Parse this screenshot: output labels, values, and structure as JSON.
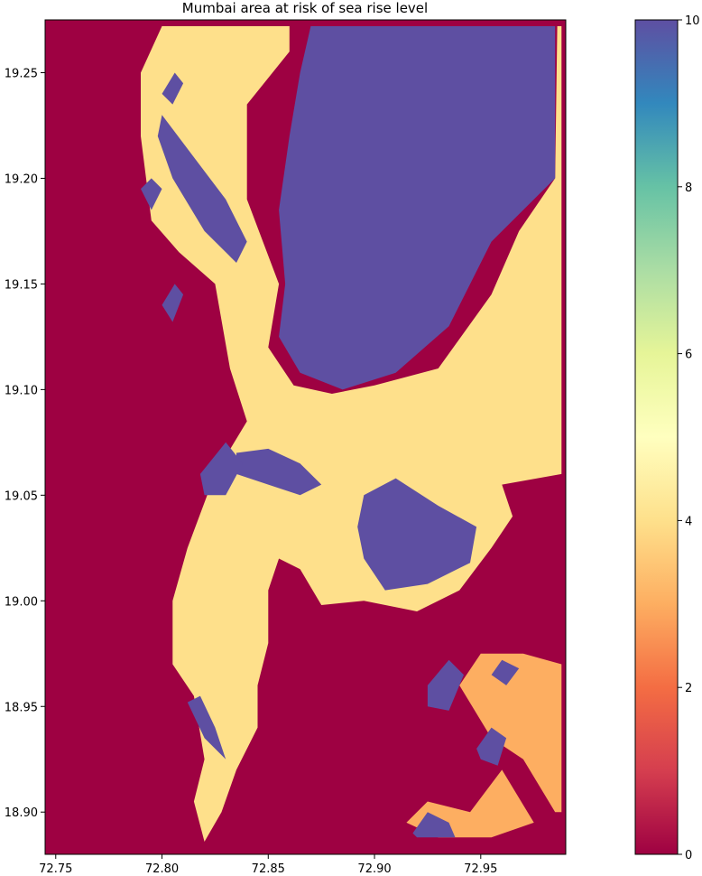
{
  "chart_data": {
    "type": "heatmap",
    "title": "Mumbai area at risk of sea rise level",
    "xlabel": "",
    "ylabel": "",
    "xlim": [
      72.745,
      72.99
    ],
    "ylim": [
      18.88,
      19.275
    ],
    "xticks": [
      72.75,
      72.8,
      72.85,
      72.9,
      72.95
    ],
    "xtick_labels": [
      "72.75",
      "72.80",
      "72.85",
      "72.90",
      "72.95"
    ],
    "yticks": [
      18.9,
      18.95,
      19.0,
      19.05,
      19.1,
      19.15,
      19.2,
      19.25
    ],
    "ytick_labels": [
      "18.90",
      "18.95",
      "19.00",
      "19.05",
      "19.10",
      "19.15",
      "19.20",
      "19.25"
    ],
    "colormap": "Spectral",
    "grid": false,
    "value_range": [
      0,
      10
    ],
    "colorbar": {
      "ticks": [
        0,
        2,
        4,
        6,
        8,
        10
      ],
      "tick_labels": [
        "0",
        "2",
        "4",
        "6",
        "8",
        "10"
      ],
      "colors": [
        "#9e0142",
        "#d53e4f",
        "#f46d43",
        "#fdae61",
        "#fee08b",
        "#ffffbf",
        "#e6f598",
        "#abdda4",
        "#66c2a5",
        "#3288bd",
        "#5e4fa2"
      ]
    },
    "regions": [
      {
        "id": "mainland-landmass",
        "value": 4,
        "polygon": [
          [
            72.82,
            18.886
          ],
          [
            72.815,
            18.905
          ],
          [
            72.82,
            18.925
          ],
          [
            72.815,
            18.955
          ],
          [
            72.805,
            18.97
          ],
          [
            72.805,
            19.0
          ],
          [
            72.812,
            19.025
          ],
          [
            72.825,
            19.06
          ],
          [
            72.84,
            19.085
          ],
          [
            72.832,
            19.11
          ],
          [
            72.825,
            19.15
          ],
          [
            72.808,
            19.165
          ],
          [
            72.795,
            19.18
          ],
          [
            72.79,
            19.22
          ],
          [
            72.79,
            19.25
          ],
          [
            72.8,
            19.272
          ],
          [
            72.86,
            19.272
          ],
          [
            72.86,
            19.26
          ],
          [
            72.84,
            19.235
          ],
          [
            72.84,
            19.19
          ],
          [
            72.855,
            19.15
          ],
          [
            72.85,
            19.12
          ],
          [
            72.862,
            19.102
          ],
          [
            72.88,
            19.098
          ],
          [
            72.9,
            19.102
          ],
          [
            72.93,
            19.11
          ],
          [
            72.955,
            19.145
          ],
          [
            72.968,
            19.175
          ],
          [
            72.985,
            19.2
          ],
          [
            72.986,
            19.272
          ],
          [
            72.988,
            19.272
          ],
          [
            72.988,
            19.06
          ],
          [
            72.96,
            19.055
          ],
          [
            72.965,
            19.04
          ],
          [
            72.955,
            19.025
          ],
          [
            72.94,
            19.005
          ],
          [
            72.92,
            18.995
          ],
          [
            72.895,
            19.0
          ],
          [
            72.875,
            18.998
          ],
          [
            72.865,
            19.015
          ],
          [
            72.855,
            19.02
          ],
          [
            72.85,
            19.005
          ],
          [
            72.85,
            18.98
          ],
          [
            72.845,
            18.96
          ],
          [
            72.845,
            18.94
          ],
          [
            72.835,
            18.92
          ],
          [
            72.828,
            18.9
          ]
        ]
      },
      {
        "id": "southeast-islands",
        "value": 3,
        "polygon": [
          [
            72.94,
            18.96
          ],
          [
            72.955,
            18.935
          ],
          [
            72.97,
            18.925
          ],
          [
            72.985,
            18.9
          ],
          [
            72.988,
            18.9
          ],
          [
            72.988,
            18.97
          ],
          [
            72.97,
            18.975
          ],
          [
            72.95,
            18.975
          ]
        ]
      },
      {
        "id": "southeast-mud",
        "value": 3,
        "polygon": [
          [
            72.915,
            18.895
          ],
          [
            72.925,
            18.905
          ],
          [
            72.945,
            18.9
          ],
          [
            72.96,
            18.92
          ],
          [
            72.975,
            18.895
          ],
          [
            72.955,
            18.888
          ],
          [
            72.93,
            18.888
          ]
        ]
      },
      {
        "id": "thane-creek-basin",
        "value": 10,
        "polygon": [
          [
            72.87,
            19.272
          ],
          [
            72.985,
            19.272
          ],
          [
            72.985,
            19.2
          ],
          [
            72.97,
            19.185
          ],
          [
            72.955,
            19.17
          ],
          [
            72.935,
            19.13
          ],
          [
            72.91,
            19.108
          ],
          [
            72.885,
            19.1
          ],
          [
            72.865,
            19.108
          ],
          [
            72.855,
            19.125
          ],
          [
            72.858,
            19.15
          ],
          [
            72.855,
            19.185
          ],
          [
            72.86,
            19.22
          ],
          [
            72.865,
            19.25
          ]
        ]
      },
      {
        "id": "mahul-bay",
        "value": 10,
        "polygon": [
          [
            72.895,
            19.05
          ],
          [
            72.91,
            19.058
          ],
          [
            72.93,
            19.045
          ],
          [
            72.948,
            19.035
          ],
          [
            72.945,
            19.018
          ],
          [
            72.925,
            19.008
          ],
          [
            72.905,
            19.005
          ],
          [
            72.895,
            19.02
          ],
          [
            72.892,
            19.035
          ]
        ]
      },
      {
        "id": "malad-creek",
        "value": 10,
        "polygon": [
          [
            72.8,
            19.23
          ],
          [
            72.815,
            19.21
          ],
          [
            72.83,
            19.19
          ],
          [
            72.84,
            19.17
          ],
          [
            72.835,
            19.16
          ],
          [
            72.82,
            19.175
          ],
          [
            72.805,
            19.2
          ],
          [
            72.798,
            19.22
          ]
        ]
      },
      {
        "id": "mahim-creek",
        "value": 10,
        "polygon": [
          [
            72.835,
            19.07
          ],
          [
            72.85,
            19.072
          ],
          [
            72.865,
            19.065
          ],
          [
            72.875,
            19.055
          ],
          [
            72.865,
            19.05
          ],
          [
            72.85,
            19.055
          ],
          [
            72.835,
            19.06
          ]
        ]
      },
      {
        "id": "colaba-point",
        "value": 10,
        "polygon": [
          [
            72.812,
            18.952
          ],
          [
            72.82,
            18.935
          ],
          [
            72.83,
            18.925
          ],
          [
            72.825,
            18.94
          ],
          [
            72.818,
            18.955
          ]
        ]
      },
      {
        "id": "west-wetland",
        "value": 10,
        "polygon": [
          [
            72.818,
            19.06
          ],
          [
            72.83,
            19.075
          ],
          [
            72.838,
            19.065
          ],
          [
            72.83,
            19.05
          ],
          [
            72.82,
            19.05
          ]
        ]
      },
      {
        "id": "elephanta-island",
        "value": 10,
        "polygon": [
          [
            72.925,
            18.96
          ],
          [
            72.935,
            18.972
          ],
          [
            72.942,
            18.965
          ],
          [
            72.935,
            18.948
          ],
          [
            72.925,
            18.95
          ]
        ]
      },
      {
        "id": "butcher-island",
        "value": 10,
        "polygon": [
          [
            72.955,
            18.965
          ],
          [
            72.96,
            18.972
          ],
          [
            72.968,
            18.968
          ],
          [
            72.962,
            18.96
          ]
        ]
      },
      {
        "id": "southeast-pond",
        "value": 10,
        "polygon": [
          [
            72.948,
            18.93
          ],
          [
            72.955,
            18.94
          ],
          [
            72.962,
            18.935
          ],
          [
            72.958,
            18.922
          ],
          [
            72.95,
            18.925
          ]
        ]
      },
      {
        "id": "south-mudflat-pond",
        "value": 10,
        "polygon": [
          [
            72.918,
            18.89
          ],
          [
            72.925,
            18.9
          ],
          [
            72.935,
            18.895
          ],
          [
            72.938,
            18.888
          ],
          [
            72.92,
            18.888
          ]
        ]
      },
      {
        "id": "north-island",
        "value": 10,
        "polygon": [
          [
            72.8,
            19.24
          ],
          [
            72.806,
            19.25
          ],
          [
            72.81,
            19.245
          ],
          [
            72.805,
            19.235
          ]
        ]
      },
      {
        "id": "madh-island",
        "value": 10,
        "polygon": [
          [
            72.79,
            19.195
          ],
          [
            72.795,
            19.2
          ],
          [
            72.8,
            19.195
          ],
          [
            72.795,
            19.185
          ]
        ]
      },
      {
        "id": "versova-patch",
        "value": 10,
        "polygon": [
          [
            72.8,
            19.14
          ],
          [
            72.806,
            19.15
          ],
          [
            72.81,
            19.145
          ],
          [
            72.805,
            19.132
          ]
        ]
      }
    ]
  }
}
